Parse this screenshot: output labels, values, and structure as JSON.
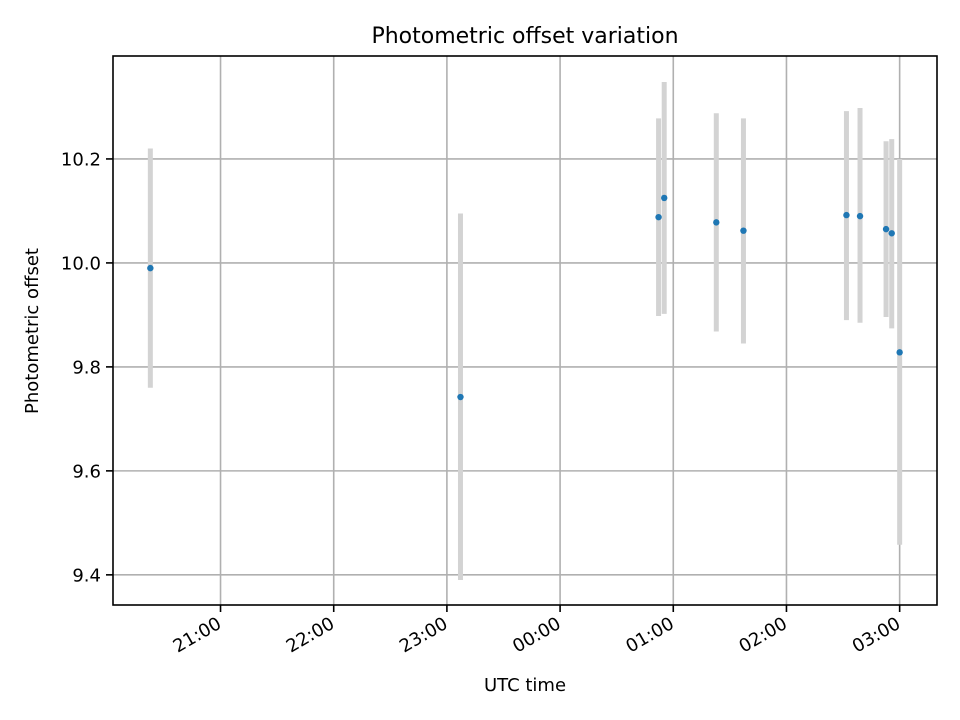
{
  "chart_data": {
    "type": "scatter",
    "title": "Photometric offset variation",
    "xlabel": "UTC time",
    "ylabel": "Photometric offset",
    "xlim": [
      20.05,
      27.33
    ],
    "ylim": [
      9.342,
      10.398
    ],
    "grid": true,
    "x_ticks": [
      {
        "value": 21,
        "label": "21:00"
      },
      {
        "value": 22,
        "label": "22:00"
      },
      {
        "value": 23,
        "label": "23:00"
      },
      {
        "value": 24,
        "label": "00:00"
      },
      {
        "value": 25,
        "label": "01:00"
      },
      {
        "value": 26,
        "label": "02:00"
      },
      {
        "value": 27,
        "label": "03:00"
      }
    ],
    "y_ticks": [
      {
        "value": 9.4,
        "label": "9.4"
      },
      {
        "value": 9.6,
        "label": "9.6"
      },
      {
        "value": 9.8,
        "label": "9.8"
      },
      {
        "value": 10.0,
        "label": "10.0"
      },
      {
        "value": 10.2,
        "label": "10.2"
      }
    ],
    "series": [
      {
        "name": "Photometric offset",
        "points": [
          {
            "x": 20.38,
            "y": 9.99,
            "ylow": 9.76,
            "yhigh": 10.22
          },
          {
            "x": 23.12,
            "y": 9.742,
            "ylow": 9.39,
            "yhigh": 10.095
          },
          {
            "x": 24.87,
            "y": 10.088,
            "ylow": 9.898,
            "yhigh": 10.278
          },
          {
            "x": 24.92,
            "y": 10.125,
            "ylow": 9.902,
            "yhigh": 10.348
          },
          {
            "x": 25.38,
            "y": 10.078,
            "ylow": 9.868,
            "yhigh": 10.288
          },
          {
            "x": 25.62,
            "y": 10.062,
            "ylow": 9.845,
            "yhigh": 10.278
          },
          {
            "x": 26.53,
            "y": 10.092,
            "ylow": 9.89,
            "yhigh": 10.292
          },
          {
            "x": 26.65,
            "y": 10.09,
            "ylow": 9.885,
            "yhigh": 10.298
          },
          {
            "x": 26.88,
            "y": 10.065,
            "ylow": 9.896,
            "yhigh": 10.234
          },
          {
            "x": 26.93,
            "y": 10.057,
            "ylow": 9.874,
            "yhigh": 10.238
          },
          {
            "x": 27.0,
            "y": 9.828,
            "ylow": 9.458,
            "yhigh": 10.2
          }
        ]
      }
    ],
    "colors": {
      "point": "#1f77b4",
      "errorbar": "#d3d3d3",
      "grid": "#b0b0b0"
    }
  }
}
